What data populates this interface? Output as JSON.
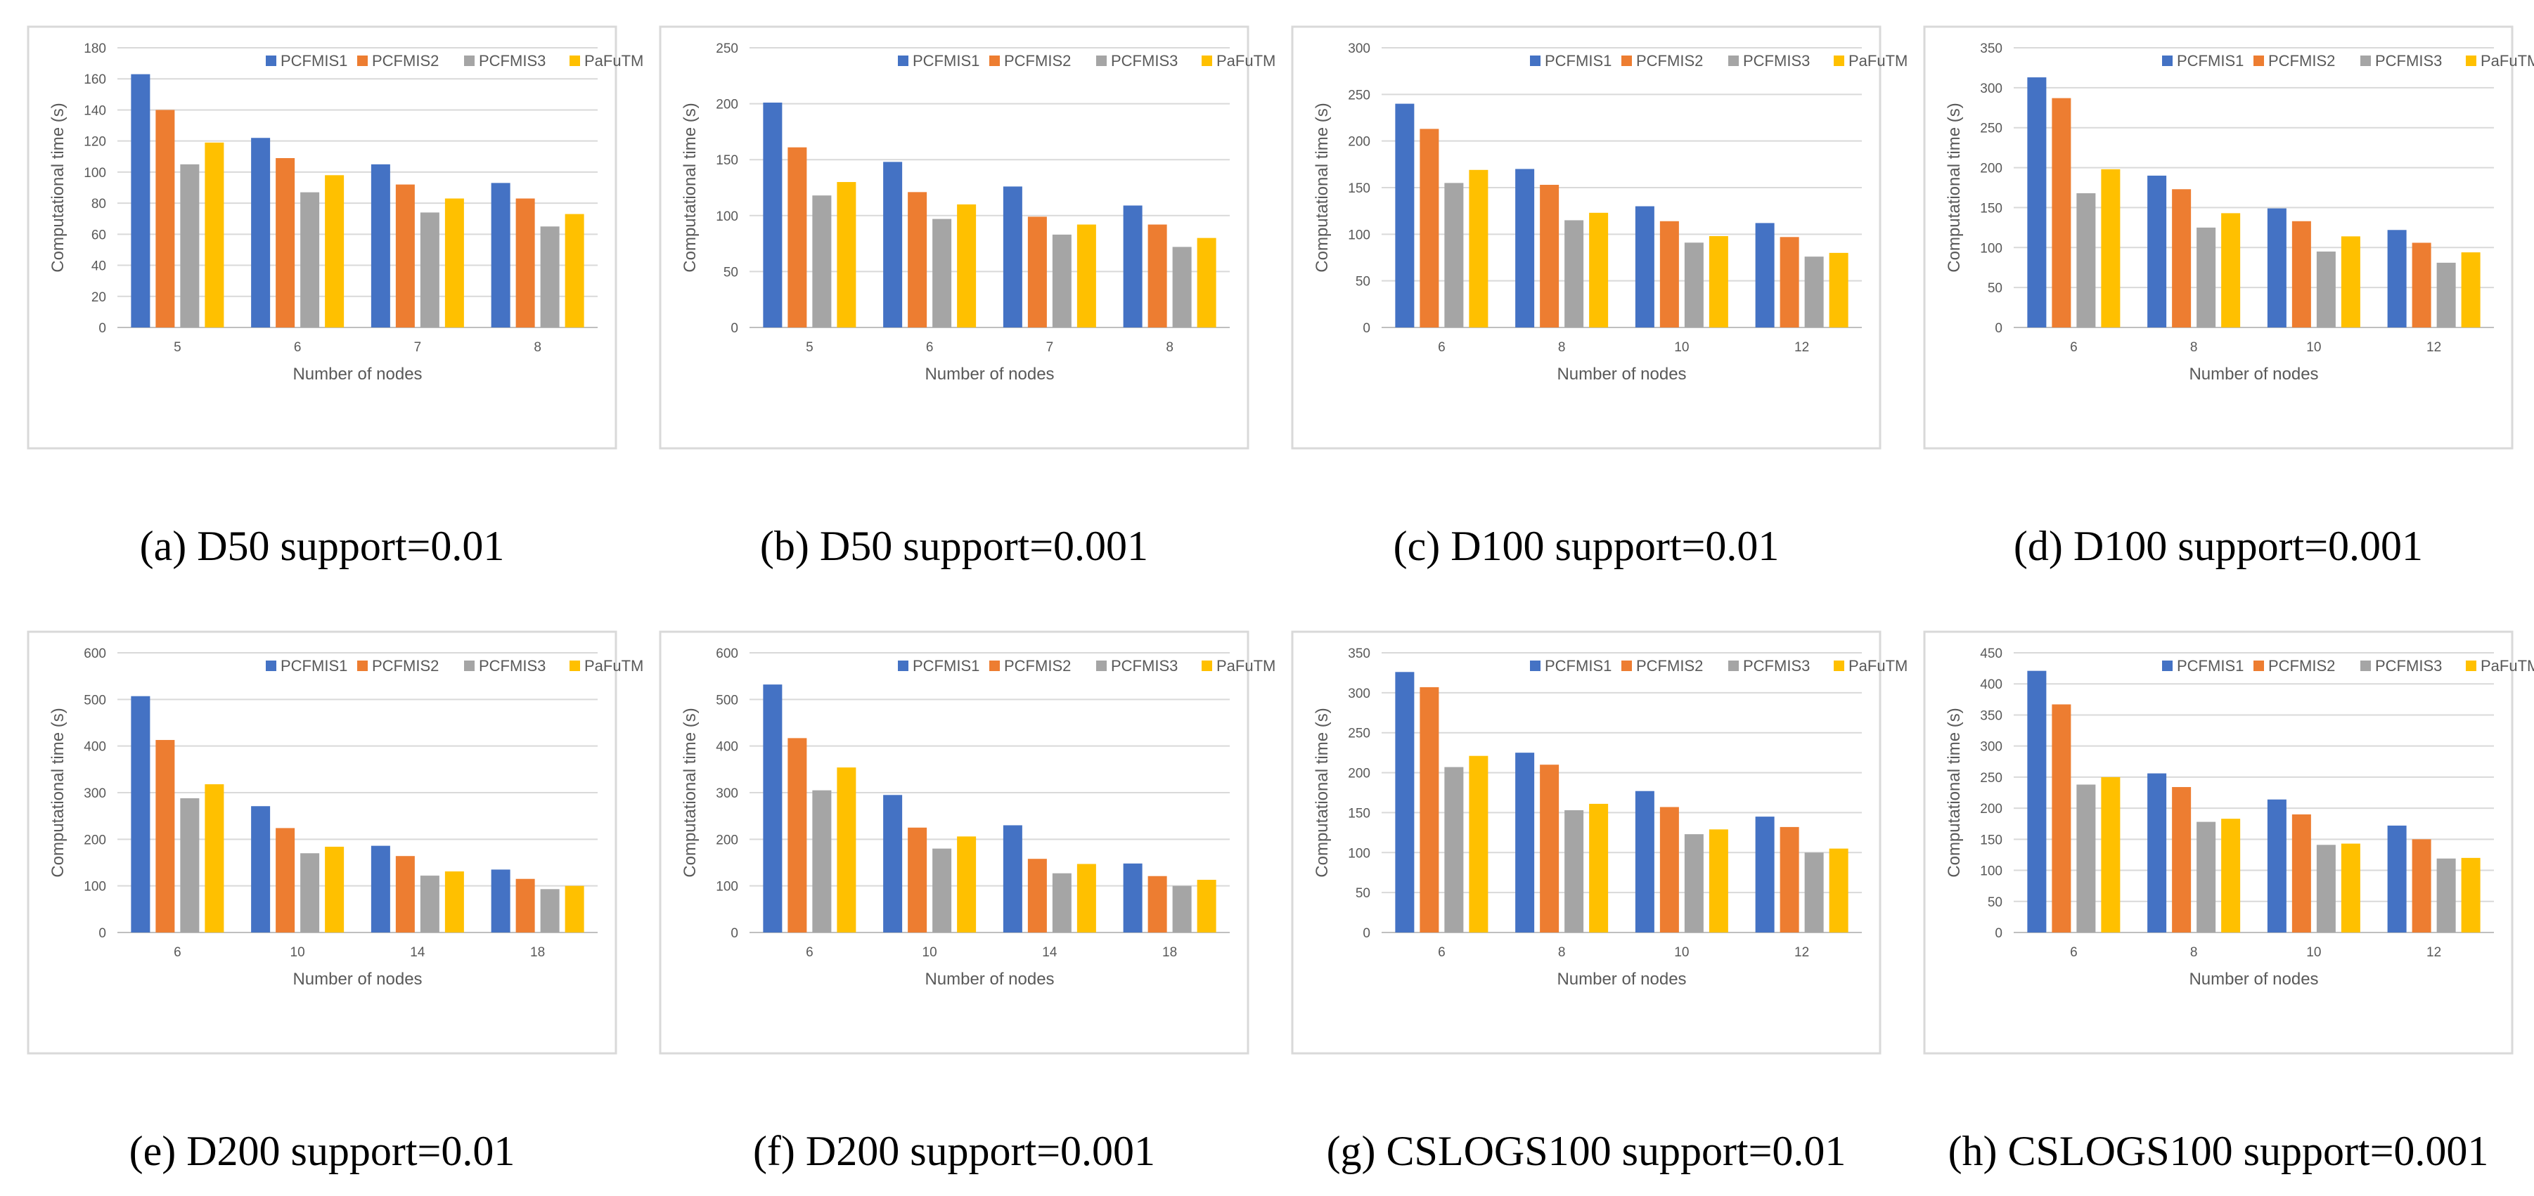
{
  "colors": {
    "PCFMIS1": "#4472c4",
    "PCFMIS2": "#ed7d31",
    "PCFMIS3": "#a5a5a5",
    "PaFuTM": "#ffc000"
  },
  "chart_data": [
    {
      "type": "bar",
      "caption": "(a) D50 support=0.01",
      "xlabel": "Number of nodes",
      "ylabel": "Computational time (s)",
      "ylim": [
        0,
        180
      ],
      "yticks": [
        0,
        20,
        40,
        60,
        80,
        100,
        120,
        140,
        160,
        180
      ],
      "categories": [
        "5",
        "6",
        "7",
        "8"
      ],
      "legend_position": "top-right",
      "grid": true,
      "series": [
        {
          "name": "PCFMIS1",
          "values": [
            163,
            122,
            105,
            93
          ]
        },
        {
          "name": "PCFMIS2",
          "values": [
            140,
            109,
            92,
            83
          ]
        },
        {
          "name": "PCFMIS3",
          "values": [
            105,
            87,
            74,
            65
          ]
        },
        {
          "name": "PaFuTM",
          "values": [
            119,
            98,
            83,
            73
          ]
        }
      ]
    },
    {
      "type": "bar",
      "caption": "(b) D50 support=0.001",
      "xlabel": "Number of nodes",
      "ylabel": "Computational time (s)",
      "ylim": [
        0,
        250
      ],
      "yticks": [
        0,
        50,
        100,
        150,
        200,
        250
      ],
      "categories": [
        "5",
        "6",
        "7",
        "8"
      ],
      "legend_position": "top-right",
      "grid": true,
      "series": [
        {
          "name": "PCFMIS1",
          "values": [
            201,
            148,
            126,
            109
          ]
        },
        {
          "name": "PCFMIS2",
          "values": [
            161,
            121,
            99,
            92
          ]
        },
        {
          "name": "PCFMIS3",
          "values": [
            118,
            97,
            83,
            72
          ]
        },
        {
          "name": "PaFuTM",
          "values": [
            130,
            110,
            92,
            80
          ]
        }
      ]
    },
    {
      "type": "bar",
      "caption": "(c) D100 support=0.01",
      "xlabel": "Number of nodes",
      "ylabel": "Computational time (s)",
      "ylim": [
        0,
        300
      ],
      "yticks": [
        0,
        50,
        100,
        150,
        200,
        250,
        300
      ],
      "categories": [
        "6",
        "8",
        "10",
        "12"
      ],
      "legend_position": "top-right",
      "grid": true,
      "series": [
        {
          "name": "PCFMIS1",
          "values": [
            240,
            170,
            130,
            112
          ]
        },
        {
          "name": "PCFMIS2",
          "values": [
            213,
            153,
            114,
            97
          ]
        },
        {
          "name": "PCFMIS3",
          "values": [
            155,
            115,
            91,
            76
          ]
        },
        {
          "name": "PaFuTM",
          "values": [
            169,
            123,
            98,
            80
          ]
        }
      ]
    },
    {
      "type": "bar",
      "caption": "(d) D100 support=0.001",
      "xlabel": "Number of nodes",
      "ylabel": "Computational time (s)",
      "ylim": [
        0,
        350
      ],
      "yticks": [
        0,
        50,
        100,
        150,
        200,
        250,
        300,
        350
      ],
      "categories": [
        "6",
        "8",
        "10",
        "12"
      ],
      "legend_position": "top-right",
      "grid": true,
      "series": [
        {
          "name": "PCFMIS1",
          "values": [
            313,
            190,
            149,
            122
          ]
        },
        {
          "name": "PCFMIS2",
          "values": [
            287,
            173,
            133,
            106
          ]
        },
        {
          "name": "PCFMIS3",
          "values": [
            168,
            125,
            95,
            81
          ]
        },
        {
          "name": "PaFuTM",
          "values": [
            198,
            143,
            114,
            94
          ]
        }
      ]
    },
    {
      "type": "bar",
      "caption": "(e) D200 support=0.01",
      "xlabel": "Number of nodes",
      "ylabel": "Computational time (s)",
      "ylim": [
        0,
        600
      ],
      "yticks": [
        0,
        100,
        200,
        300,
        400,
        500,
        600
      ],
      "categories": [
        "6",
        "10",
        "14",
        "18"
      ],
      "legend_position": "top-right",
      "grid": true,
      "series": [
        {
          "name": "PCFMIS1",
          "values": [
            507,
            271,
            186,
            135
          ]
        },
        {
          "name": "PCFMIS2",
          "values": [
            413,
            224,
            164,
            115
          ]
        },
        {
          "name": "PCFMIS3",
          "values": [
            288,
            170,
            122,
            93
          ]
        },
        {
          "name": "PaFuTM",
          "values": [
            318,
            184,
            131,
            100
          ]
        }
      ]
    },
    {
      "type": "bar",
      "caption": "(f) D200 support=0.001",
      "xlabel": "Number of nodes",
      "ylabel": "Computational time (s)",
      "ylim": [
        0,
        600
      ],
      "yticks": [
        0,
        100,
        200,
        300,
        400,
        500,
        600
      ],
      "categories": [
        "6",
        "10",
        "14",
        "18"
      ],
      "legend_position": "top-right",
      "grid": true,
      "series": [
        {
          "name": "PCFMIS1",
          "values": [
            532,
            295,
            230,
            148
          ]
        },
        {
          "name": "PCFMIS2",
          "values": [
            417,
            225,
            158,
            121
          ]
        },
        {
          "name": "PCFMIS3",
          "values": [
            305,
            180,
            127,
            100
          ]
        },
        {
          "name": "PaFuTM",
          "values": [
            354,
            206,
            147,
            113
          ]
        }
      ]
    },
    {
      "type": "bar",
      "caption": "(g) CSLOGS100 support=0.01",
      "xlabel": "Number of nodes",
      "ylabel": "Computational time (s)",
      "ylim": [
        0,
        350
      ],
      "yticks": [
        0,
        50,
        100,
        150,
        200,
        250,
        300,
        350
      ],
      "categories": [
        "6",
        "8",
        "10",
        "12"
      ],
      "legend_position": "top-right",
      "grid": true,
      "series": [
        {
          "name": "PCFMIS1",
          "values": [
            326,
            225,
            177,
            145
          ]
        },
        {
          "name": "PCFMIS2",
          "values": [
            307,
            210,
            157,
            132
          ]
        },
        {
          "name": "PCFMIS3",
          "values": [
            207,
            153,
            123,
            100
          ]
        },
        {
          "name": "PaFuTM",
          "values": [
            221,
            161,
            129,
            105
          ]
        }
      ]
    },
    {
      "type": "bar",
      "caption": "(h) CSLOGS100 support=0.001",
      "xlabel": "Number of nodes",
      "ylabel": "Computational time (s)",
      "ylim": [
        0,
        450
      ],
      "yticks": [
        0,
        50,
        100,
        150,
        200,
        250,
        300,
        350,
        400,
        450
      ],
      "categories": [
        "6",
        "8",
        "10",
        "12"
      ],
      "legend_position": "top-right",
      "grid": true,
      "series": [
        {
          "name": "PCFMIS1",
          "values": [
            421,
            256,
            214,
            172
          ]
        },
        {
          "name": "PCFMIS2",
          "values": [
            367,
            234,
            190,
            150
          ]
        },
        {
          "name": "PCFMIS3",
          "values": [
            238,
            178,
            141,
            119
          ]
        },
        {
          "name": "PaFuTM",
          "values": [
            250,
            183,
            143,
            120
          ]
        }
      ]
    }
  ]
}
